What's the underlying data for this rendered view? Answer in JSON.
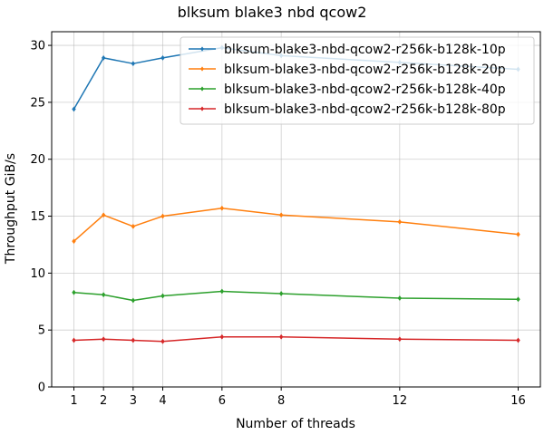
{
  "chart_data": {
    "type": "line",
    "title": "blksum blake3 nbd qcow2",
    "xlabel": "Number of threads",
    "ylabel": "Throughput GiB/s",
    "x": [
      1,
      2,
      3,
      4,
      6,
      8,
      12,
      16
    ],
    "xticks": [
      1,
      2,
      3,
      4,
      6,
      8,
      12,
      16
    ],
    "xlim": [
      0.25,
      16.75
    ],
    "ylim": [
      0,
      31.2
    ],
    "yticks": [
      0,
      5,
      10,
      15,
      20,
      25,
      30
    ],
    "grid": true,
    "legend_position": "top-right",
    "series": [
      {
        "name": "blksum-blake3-nbd-qcow2-r256k-b128k-10p",
        "color": "#1f77b4",
        "values": [
          24.4,
          28.9,
          28.4,
          28.9,
          29.8,
          29.1,
          28.5,
          27.9
        ]
      },
      {
        "name": "blksum-blake3-nbd-qcow2-r256k-b128k-20p",
        "color": "#ff7f0e",
        "values": [
          12.8,
          15.1,
          14.1,
          15.0,
          15.7,
          15.1,
          14.5,
          13.4
        ]
      },
      {
        "name": "blksum-blake3-nbd-qcow2-r256k-b128k-40p",
        "color": "#2ca02c",
        "values": [
          8.3,
          8.1,
          7.6,
          8.0,
          8.4,
          8.2,
          7.8,
          7.7
        ]
      },
      {
        "name": "blksum-blake3-nbd-qcow2-r256k-b128k-80p",
        "color": "#d62728",
        "values": [
          4.1,
          4.2,
          4.1,
          4.0,
          4.4,
          4.4,
          4.2,
          4.1
        ]
      }
    ]
  }
}
